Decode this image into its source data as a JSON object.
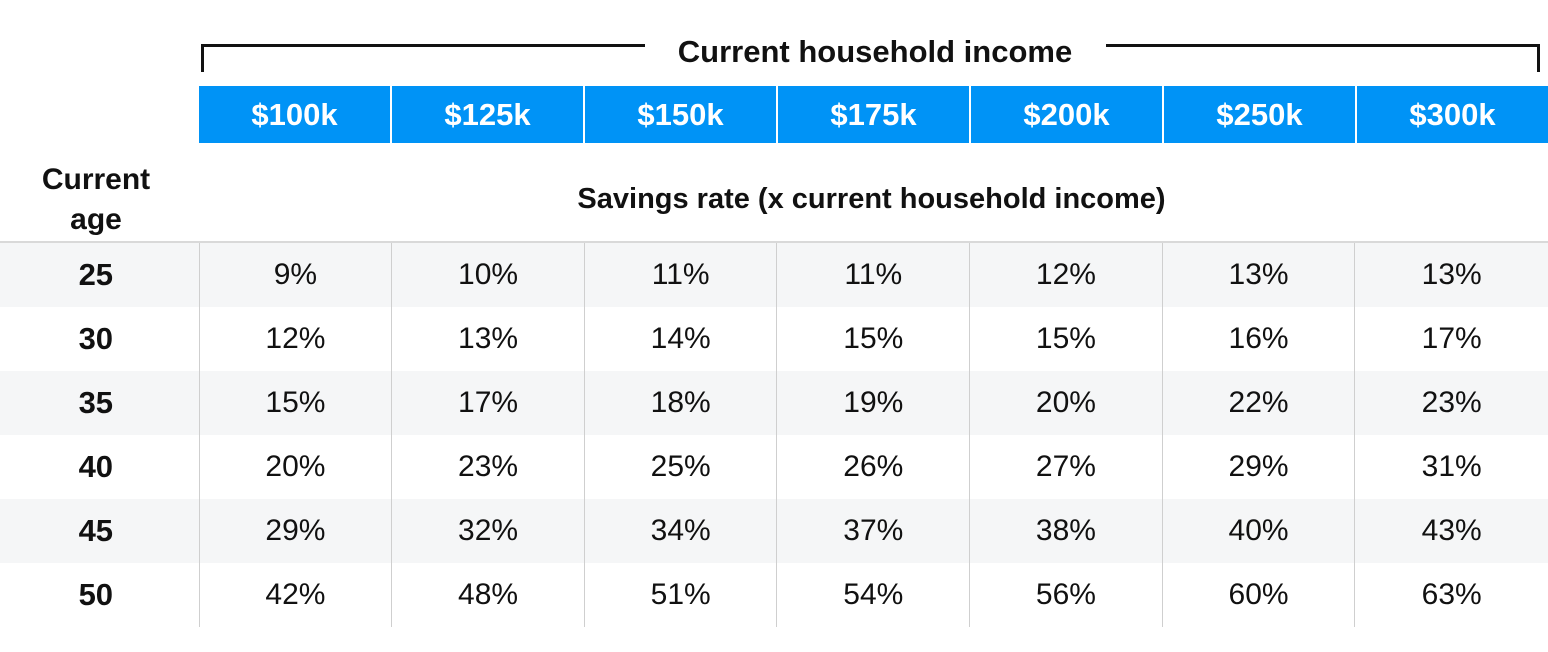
{
  "chart_data": {
    "type": "table",
    "title": "Current household income",
    "subtitle": "Savings rate (x current household income)",
    "row_header_label": "Current age",
    "columns": [
      "$100k",
      "$125k",
      "$150k",
      "$175k",
      "$200k",
      "$250k",
      "$300k"
    ],
    "rows": [
      {
        "age": "25",
        "values": [
          "9%",
          "10%",
          "11%",
          "11%",
          "12%",
          "13%",
          "13%"
        ]
      },
      {
        "age": "30",
        "values": [
          "12%",
          "13%",
          "14%",
          "15%",
          "15%",
          "16%",
          "17%"
        ]
      },
      {
        "age": "35",
        "values": [
          "15%",
          "17%",
          "18%",
          "19%",
          "20%",
          "22%",
          "23%"
        ]
      },
      {
        "age": "40",
        "values": [
          "20%",
          "23%",
          "25%",
          "26%",
          "27%",
          "29%",
          "31%"
        ]
      },
      {
        "age": "45",
        "values": [
          "29%",
          "32%",
          "34%",
          "37%",
          "38%",
          "40%",
          "43%"
        ]
      },
      {
        "age": "50",
        "values": [
          "42%",
          "48%",
          "51%",
          "54%",
          "56%",
          "60%",
          "63%"
        ]
      }
    ]
  },
  "colors": {
    "header_bg": "#0093f6",
    "header_text": "#ffffff",
    "row_shade": "#f5f6f7",
    "divider": "#d9d9d9"
  }
}
